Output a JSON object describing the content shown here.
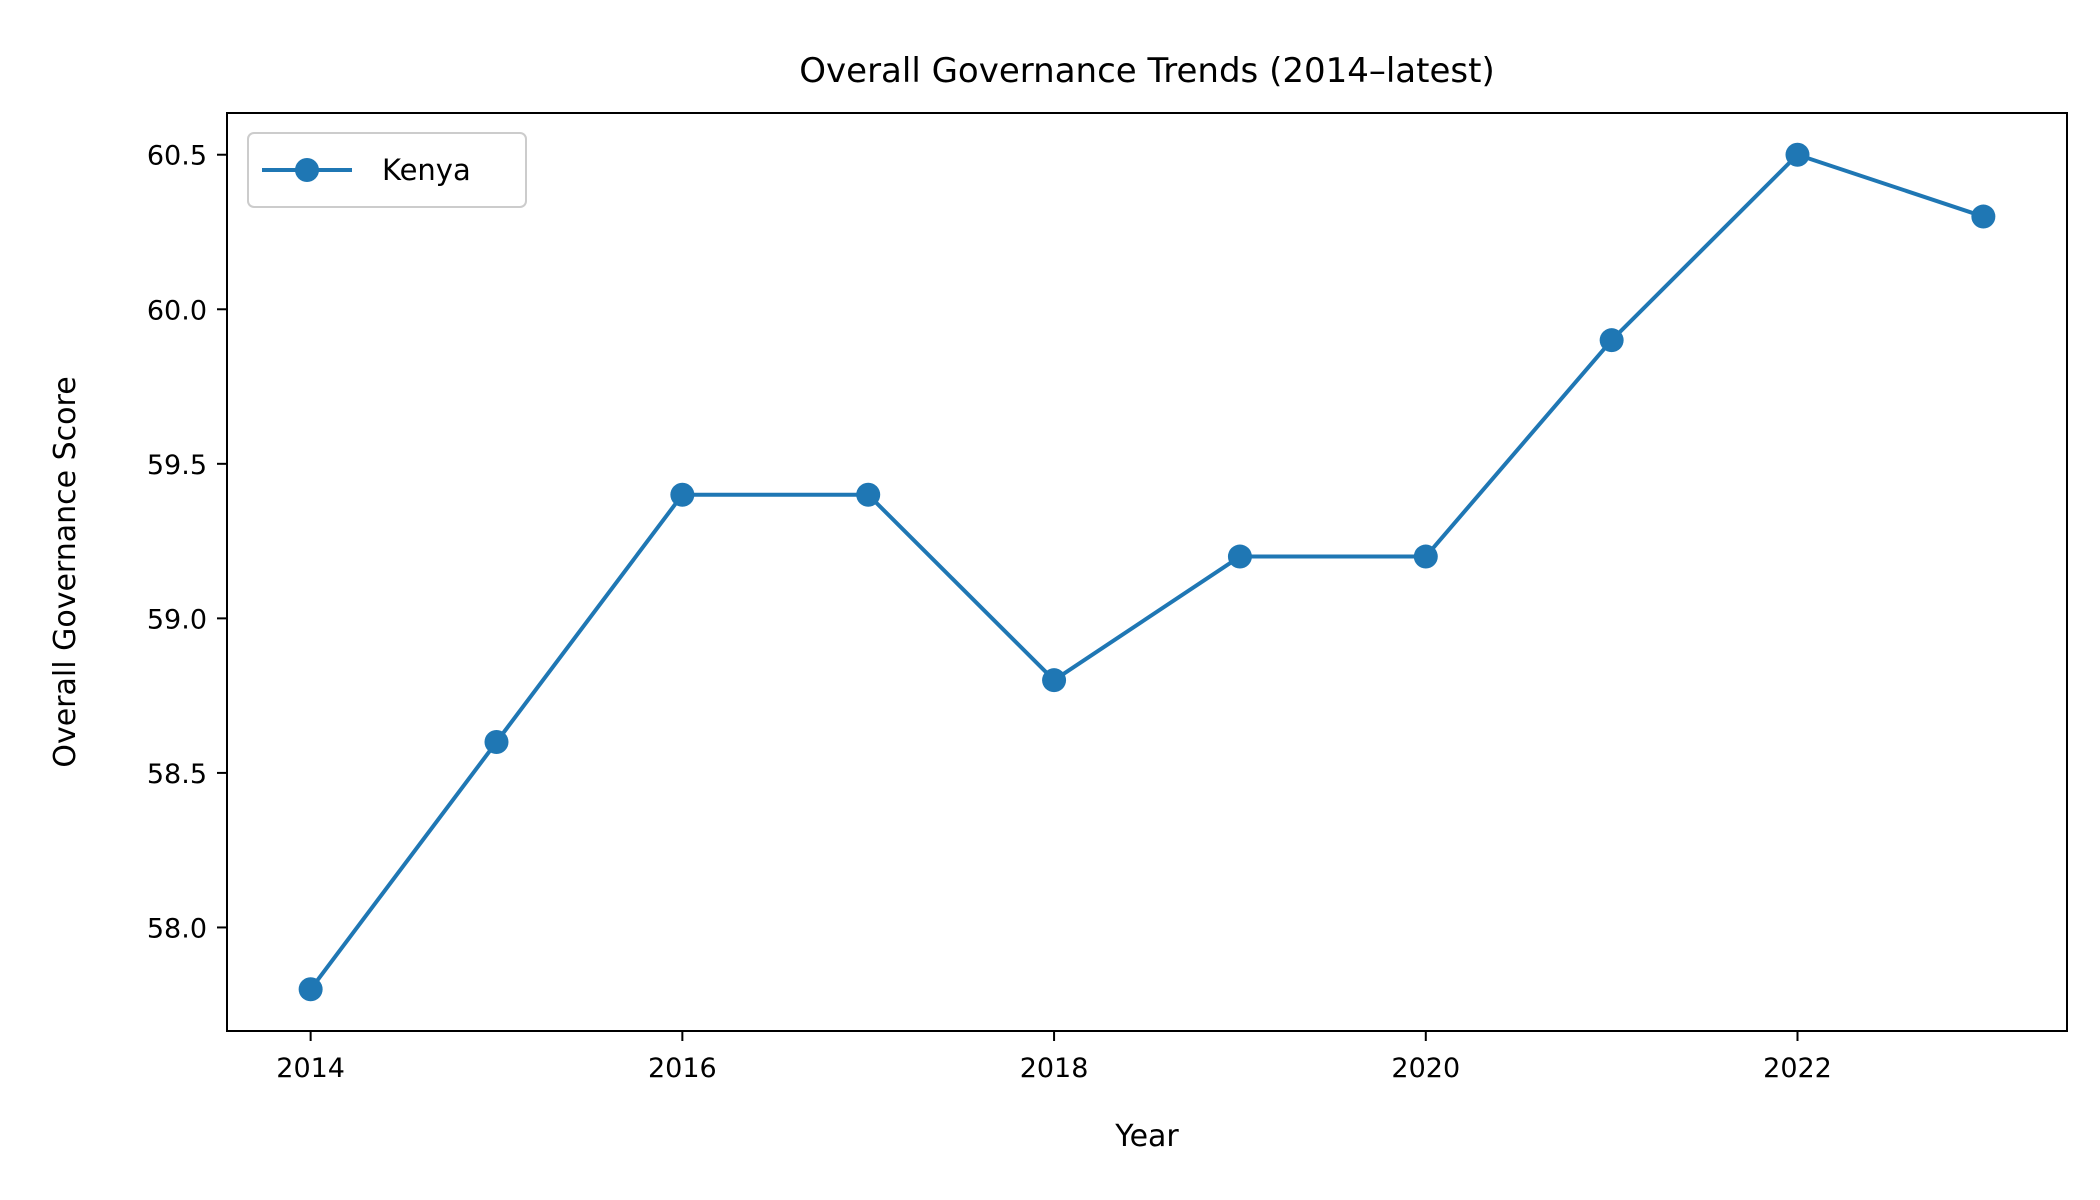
{
  "chart_data": {
    "type": "line",
    "title": "Overall Governance Trends (2014–latest)",
    "xlabel": "Year",
    "ylabel": "Overall Governance Score",
    "x": [
      2014,
      2015,
      2016,
      2017,
      2018,
      2019,
      2020,
      2021,
      2022,
      2023
    ],
    "series": [
      {
        "name": "Kenya",
        "values": [
          57.8,
          58.6,
          59.4,
          59.4,
          58.8,
          59.2,
          59.2,
          59.9,
          60.5,
          60.3
        ],
        "color": "#1f77b4",
        "marker": "circle"
      }
    ],
    "xlim": [
      2013.55,
      2023.45
    ],
    "ylim": [
      57.665,
      60.635
    ],
    "xticks": [
      2014,
      2016,
      2018,
      2020,
      2022
    ],
    "xtick_labels": [
      "2014",
      "2016",
      "2018",
      "2020",
      "2022"
    ],
    "yticks": [
      58.0,
      58.5,
      59.0,
      59.5,
      60.0,
      60.5
    ],
    "ytick_labels": [
      "58.0",
      "58.5",
      "59.0",
      "59.5",
      "60.0",
      "60.5"
    ],
    "grid": false,
    "legend_position": "top-left"
  }
}
